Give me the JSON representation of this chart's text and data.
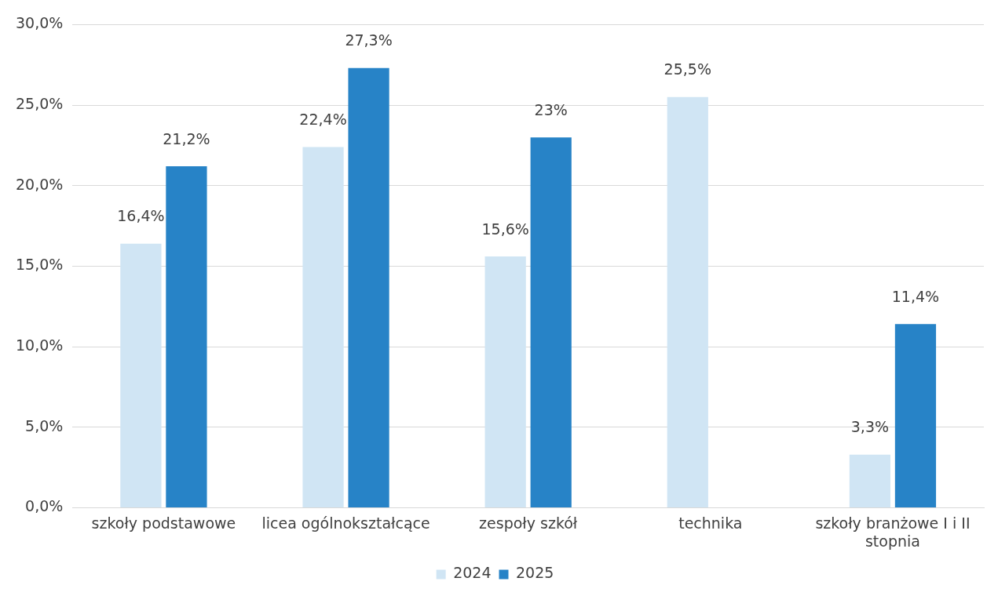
{
  "chart_data": {
    "type": "bar",
    "categories": [
      "szkoły podstawowe",
      "licea ogólnokształcące",
      "zespoły szkół",
      "technika",
      "szkoły branżowe I i II stopnia"
    ],
    "series": [
      {
        "name": "2024",
        "color": "#d0e5f4",
        "values": [
          16.4,
          22.4,
          15.6,
          25.5,
          3.3
        ],
        "value_labels": [
          "16,4%",
          "22,4%",
          "15,6%",
          "25,5%",
          "3,3%"
        ]
      },
      {
        "name": "2025",
        "color": "#2783c7",
        "values": [
          21.2,
          27.3,
          23,
          null,
          11.4
        ],
        "value_labels": [
          "21,2%",
          "27,3%",
          "23%",
          null,
          "11,4%"
        ]
      }
    ],
    "ylim": [
      0,
      30
    ],
    "yticks": [
      {
        "value": 0,
        "label": "0,0%"
      },
      {
        "value": 5,
        "label": "5,0%"
      },
      {
        "value": 10,
        "label": "10,0%"
      },
      {
        "value": 15,
        "label": "15,0%"
      },
      {
        "value": 20,
        "label": "20,0%"
      },
      {
        "value": 25,
        "label": "25,0%"
      },
      {
        "value": 30,
        "label": "30,0%"
      }
    ],
    "grid": "y",
    "legend": "bottom"
  }
}
